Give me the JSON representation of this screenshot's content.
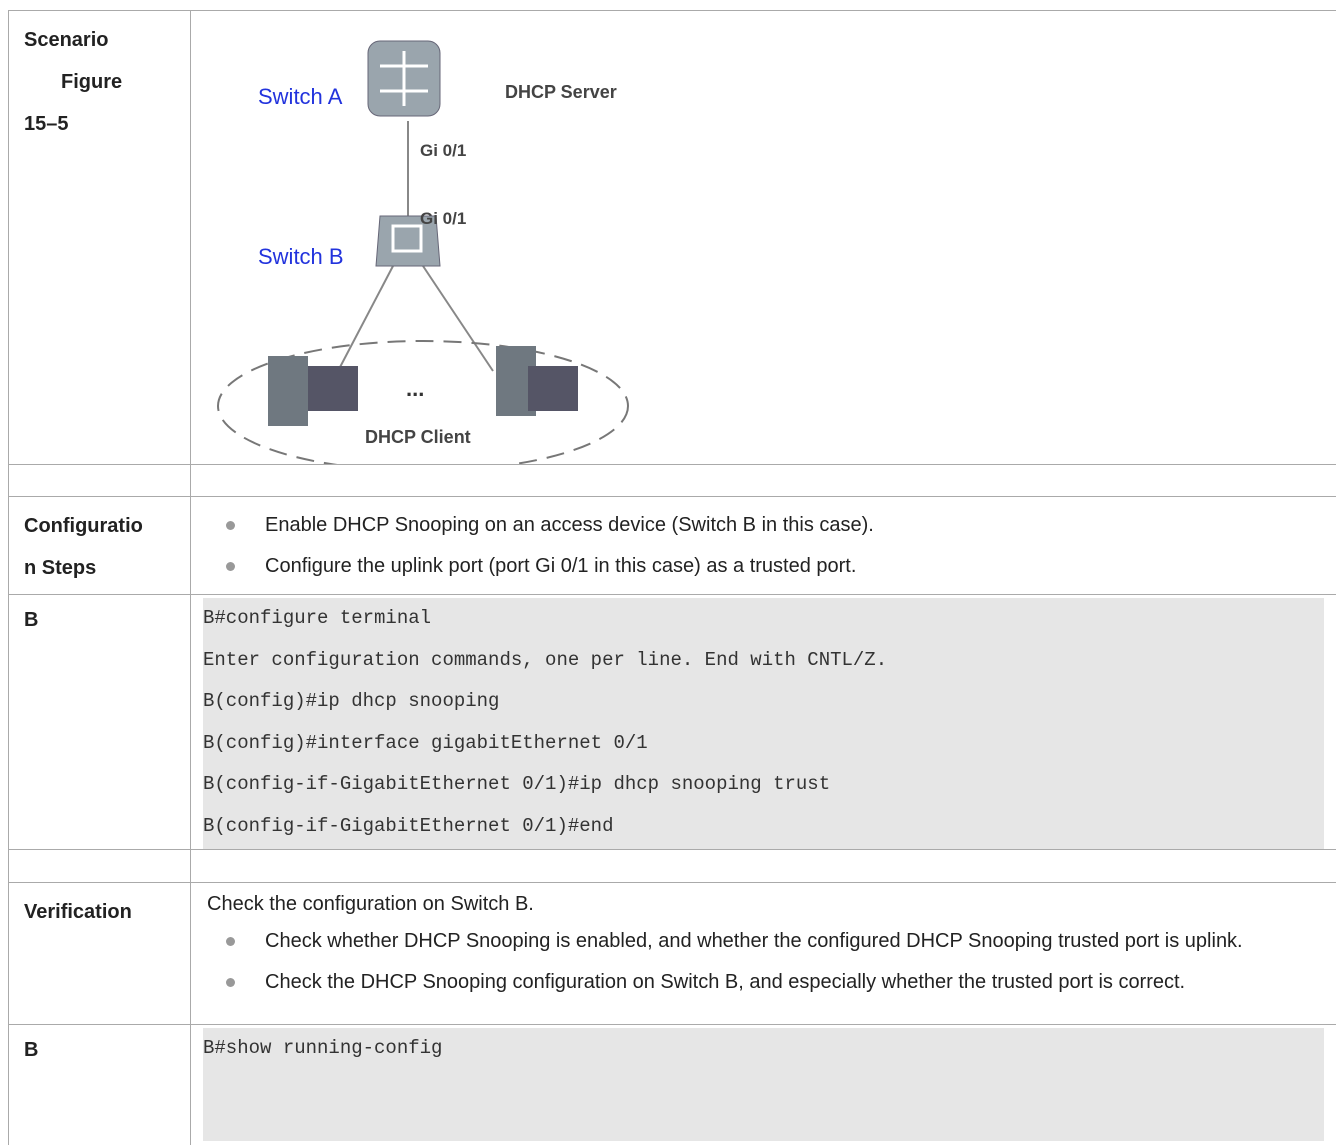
{
  "table": {
    "rows": [
      {
        "label": [
          "Scenario",
          "Figure",
          "15–5"
        ],
        "figure": {
          "switch_a": "Switch A",
          "server": "DHCP Server",
          "port_a": "Gi 0/1",
          "port_b": "Gi 0/1",
          "switch_b": "Switch B",
          "ellipsis": "...",
          "client": "DHCP Client"
        }
      },
      {},
      {
        "label": [
          "Configuratio",
          "n Steps"
        ],
        "bullets": [
          "Enable DHCP Snooping on an access device (Switch B in this case).",
          "Configure the uplink port (port Gi 0/1 in this case) as a trusted port."
        ]
      },
      {
        "label": [
          "B"
        ],
        "code": [
          "B#configure terminal",
          "Enter configuration commands, one per line.  End with CNTL/Z.",
          "B(config)#ip dhcp snooping",
          "B(config)#interface gigabitEthernet 0/1",
          "B(config-if-GigabitEthernet 0/1)#ip dhcp snooping trust",
          "B(config-if-GigabitEthernet 0/1)#end"
        ]
      },
      {},
      {
        "label": [
          "Verification"
        ],
        "intro": "Check the configuration on Switch B.",
        "bullets": [
          "Check whether DHCP Snooping is enabled, and whether the configured DHCP Snooping trusted port is uplink.",
          "Check the DHCP Snooping configuration on Switch B, and especially whether the trusted port is correct."
        ]
      },
      {
        "label": [
          "B"
        ],
        "code": [
          "B#show running-config"
        ]
      }
    ]
  }
}
